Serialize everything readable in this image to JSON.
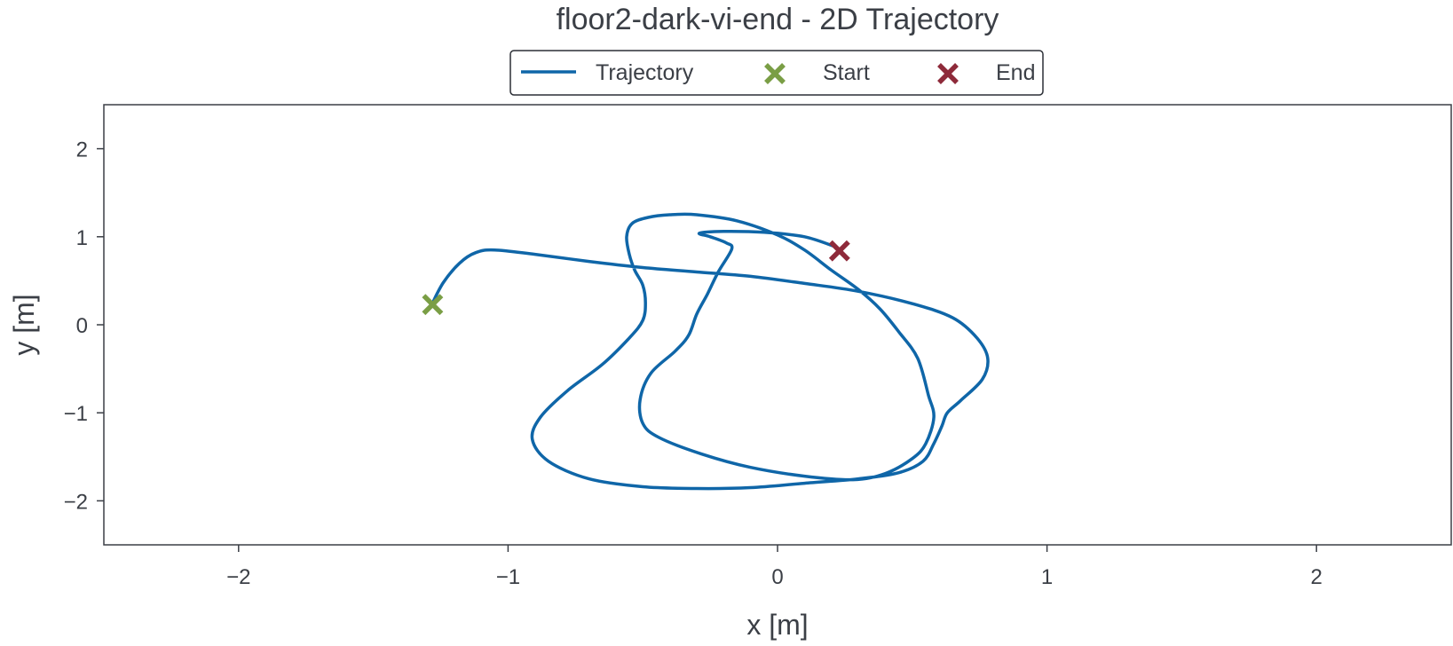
{
  "chart_data": {
    "type": "line",
    "title": "floor2-dark-vi-end - 2D Trajectory",
    "xlabel": "x [m]",
    "ylabel": "y [m]",
    "xlim": [
      -2.5,
      2.5
    ],
    "ylim": [
      -2.5,
      2.5
    ],
    "xticks": [
      -2,
      -1,
      0,
      1,
      2
    ],
    "yticks": [
      -2,
      -1,
      0,
      1,
      2
    ],
    "xtick_labels": [
      "−2",
      "−1",
      "0",
      "1",
      "2"
    ],
    "ytick_labels": [
      "−2",
      "−1",
      "0",
      "1",
      "2"
    ],
    "grid": false,
    "legend_position": "top-center",
    "series": [
      {
        "name": "Trajectory",
        "color": "#0f66a8",
        "x": [
          -1.28,
          -1.24,
          -1.18,
          -1.12,
          -1.05,
          -0.9,
          -0.7,
          -0.5,
          -0.3,
          -0.1,
          0.1,
          0.3,
          0.5,
          0.65,
          0.74,
          0.78,
          0.76,
          0.68,
          0.63,
          0.61,
          0.58,
          0.54,
          0.45,
          0.3,
          0.1,
          -0.1,
          -0.3,
          -0.5,
          -0.7,
          -0.85,
          -0.91,
          -0.88,
          -0.78,
          -0.65,
          -0.55,
          -0.5,
          -0.49,
          -0.5,
          -0.53,
          -0.55,
          -0.56,
          -0.54,
          -0.48,
          -0.4,
          -0.3,
          -0.15,
          0,
          0.1,
          0.2,
          0.3,
          0.38,
          0.45,
          0.52,
          0.56,
          0.58,
          0.55,
          0.5,
          0.4,
          0.28,
          0.1,
          -0.1,
          -0.28,
          -0.44,
          -0.5,
          -0.51,
          -0.47,
          -0.38,
          -0.33,
          -0.3,
          -0.26,
          -0.22,
          -0.17,
          -0.19,
          -0.25,
          -0.29,
          -0.2,
          -0.05,
          0.1,
          0.22
        ],
        "y": [
          0.25,
          0.48,
          0.7,
          0.82,
          0.85,
          0.8,
          0.72,
          0.65,
          0.6,
          0.55,
          0.47,
          0.38,
          0.24,
          0.08,
          -0.15,
          -0.38,
          -0.62,
          -0.86,
          -1.0,
          -1.15,
          -1.35,
          -1.55,
          -1.68,
          -1.75,
          -1.8,
          -1.85,
          -1.86,
          -1.84,
          -1.75,
          -1.55,
          -1.3,
          -1.05,
          -0.75,
          -0.45,
          -0.15,
          0.05,
          0.25,
          0.45,
          0.62,
          0.8,
          1.0,
          1.15,
          1.22,
          1.25,
          1.25,
          1.18,
          1.02,
          0.85,
          0.62,
          0.4,
          0.18,
          -0.08,
          -0.38,
          -0.8,
          -1.05,
          -1.35,
          -1.52,
          -1.69,
          -1.76,
          -1.72,
          -1.62,
          -1.47,
          -1.28,
          -1.12,
          -0.85,
          -0.55,
          -0.3,
          -0.12,
          0.12,
          0.35,
          0.6,
          0.86,
          0.93,
          1.0,
          1.04,
          1.06,
          1.05,
          1.0,
          0.88
        ]
      }
    ],
    "markers": [
      {
        "name": "Start",
        "x": -1.28,
        "y": 0.23,
        "color": "#7a9e45"
      },
      {
        "name": "End",
        "x": 0.23,
        "y": 0.84,
        "color": "#8e2a3a"
      }
    ],
    "axis_color": "#3b3f46"
  }
}
